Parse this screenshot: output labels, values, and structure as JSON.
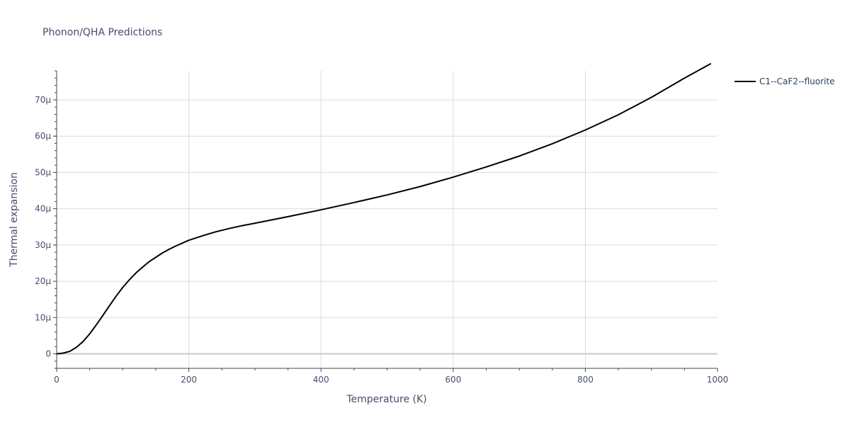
{
  "chart_data": {
    "type": "line",
    "title": "Phonon/QHA Predictions",
    "xlabel": "Temperature (K)",
    "ylabel": "Thermal expansion",
    "xlim": [
      0,
      1000
    ],
    "ylim": [
      -4e-06,
      7.8e-05
    ],
    "x_ticks": [
      0,
      200,
      400,
      600,
      800,
      1000
    ],
    "x_tick_labels": [
      "0",
      "200",
      "400",
      "600",
      "800",
      "1000"
    ],
    "y_ticks": [
      0,
      1e-05,
      2e-05,
      3e-05,
      4e-05,
      5e-05,
      6e-05,
      7e-05
    ],
    "y_tick_labels": [
      "0",
      "10μ",
      "20μ",
      "30μ",
      "40μ",
      "50μ",
      "60μ",
      "70μ"
    ],
    "grid": true,
    "legend_position": "top-right-outside",
    "colors": {
      "series": "#000000",
      "text": "#444f6a",
      "grid": "#dcdcdc"
    },
    "series": [
      {
        "name": "C1--CaF2--fluorite",
        "x": [
          0,
          10,
          20,
          30,
          40,
          50,
          60,
          70,
          80,
          90,
          100,
          110,
          120,
          130,
          140,
          150,
          160,
          170,
          180,
          190,
          200,
          220,
          240,
          260,
          280,
          300,
          350,
          400,
          450,
          500,
          550,
          600,
          650,
          700,
          750,
          800,
          850,
          900,
          950,
          990
        ],
        "y": [
          0,
          2e-07,
          7e-07,
          1.8e-06,
          3.4e-06,
          5.5e-06,
          8e-06,
          1.06e-05,
          1.33e-05,
          1.59e-05,
          1.83e-05,
          2.04e-05,
          2.23e-05,
          2.39e-05,
          2.54e-05,
          2.66e-05,
          2.78e-05,
          2.88e-05,
          2.97e-05,
          3.05e-05,
          3.13e-05,
          3.25e-05,
          3.36e-05,
          3.45e-05,
          3.53e-05,
          3.6e-05,
          3.78e-05,
          3.97e-05,
          4.17e-05,
          4.38e-05,
          4.61e-05,
          4.87e-05,
          5.15e-05,
          5.45e-05,
          5.79e-05,
          6.17e-05,
          6.59e-05,
          7.07e-05,
          7.6e-05,
          8e-05
        ]
      }
    ]
  }
}
